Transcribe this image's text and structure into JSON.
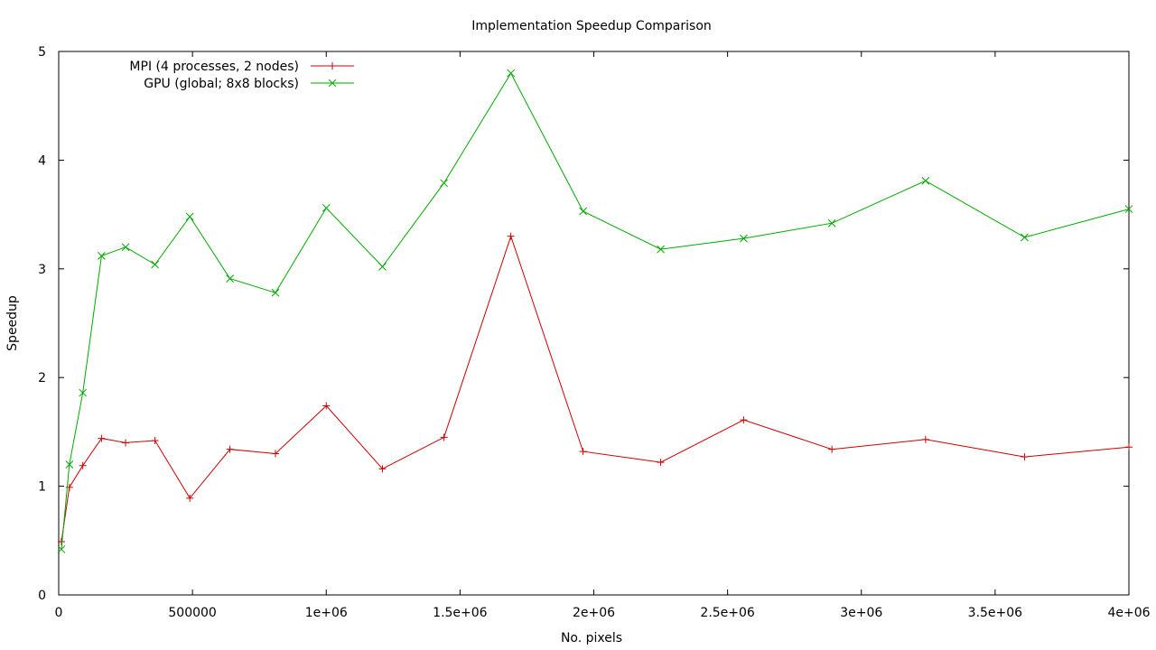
{
  "chart_data": {
    "type": "line",
    "title": "Implementation Speedup Comparison",
    "xlabel": "No. pixels",
    "ylabel": "Speedup",
    "xlim": [
      0,
      4000000
    ],
    "ylim": [
      0,
      5
    ],
    "grid": false,
    "legend_position": "top-left",
    "x_ticks": [
      {
        "value": 0,
        "label": "0"
      },
      {
        "value": 500000,
        "label": "500000"
      },
      {
        "value": 1000000,
        "label": "1e+06"
      },
      {
        "value": 1500000,
        "label": "1.5e+06"
      },
      {
        "value": 2000000,
        "label": "2e+06"
      },
      {
        "value": 2500000,
        "label": "2.5e+06"
      },
      {
        "value": 3000000,
        "label": "3e+06"
      },
      {
        "value": 3500000,
        "label": "3.5e+06"
      },
      {
        "value": 4000000,
        "label": "4e+06"
      }
    ],
    "y_ticks": [
      {
        "value": 0,
        "label": "0"
      },
      {
        "value": 1,
        "label": "1"
      },
      {
        "value": 2,
        "label": "2"
      },
      {
        "value": 3,
        "label": "3"
      },
      {
        "value": 4,
        "label": "4"
      },
      {
        "value": 5,
        "label": "5"
      }
    ],
    "x": [
      10000,
      40000,
      90000,
      160000,
      250000,
      360000,
      490000,
      640000,
      810000,
      1000000,
      1210000,
      1440000,
      1690000,
      1960000,
      2250000,
      2560000,
      2890000,
      3240000,
      3610000,
      4000000
    ],
    "series": [
      {
        "name": "MPI (4 processes, 2 nodes)",
        "color": "#cc0000",
        "marker": "plus",
        "values": [
          0.49,
          0.99,
          1.19,
          1.44,
          1.4,
          1.42,
          0.89,
          1.34,
          1.3,
          1.74,
          1.16,
          1.45,
          3.3,
          1.32,
          1.22,
          1.61,
          1.34,
          1.43,
          1.27,
          1.36
        ]
      },
      {
        "name": "GPU (global; 8x8 blocks)",
        "color": "#00aa00",
        "marker": "cross",
        "values": [
          0.42,
          1.2,
          1.86,
          3.12,
          3.2,
          3.04,
          3.48,
          2.91,
          2.78,
          3.56,
          3.02,
          3.79,
          4.8,
          3.53,
          3.18,
          3.28,
          3.42,
          3.81,
          3.29,
          3.55
        ]
      }
    ]
  }
}
